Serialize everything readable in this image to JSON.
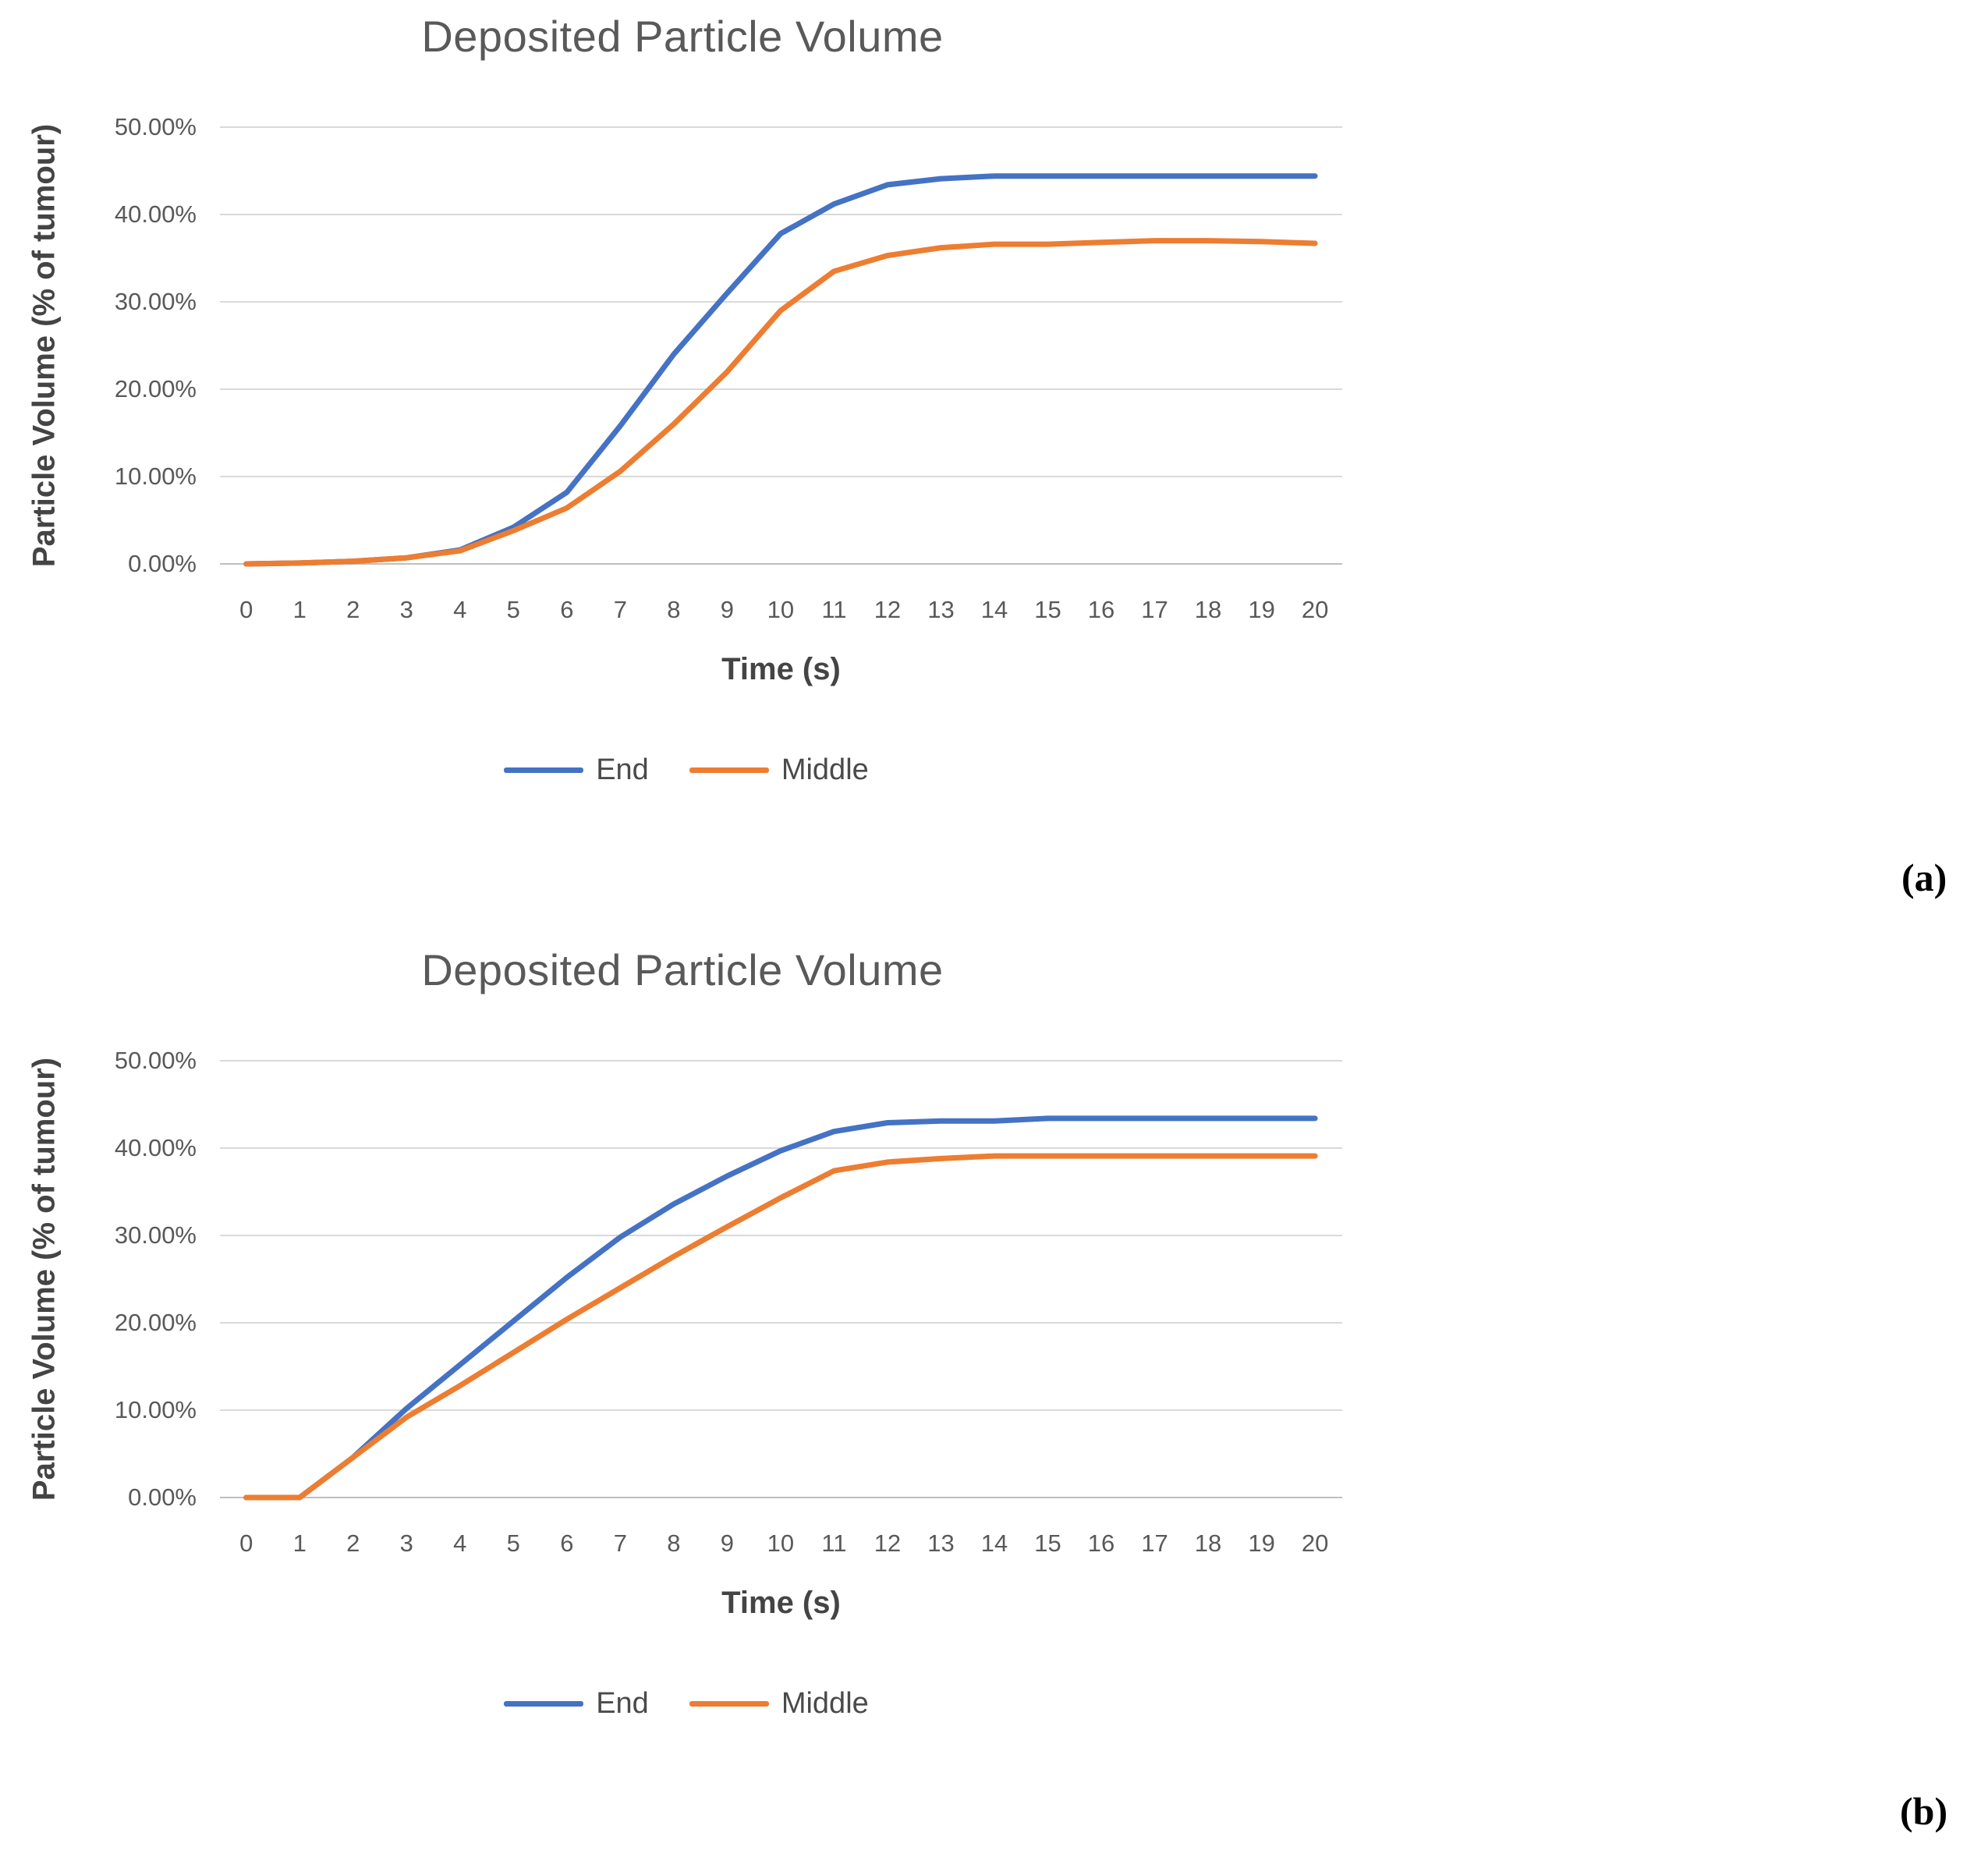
{
  "page": {
    "background": "#ffffff"
  },
  "panel_labels": {
    "a": "(a)",
    "b": "(b)"
  },
  "style": {
    "grid_color": "#D9D9D9",
    "axis_line_color": "#BFBFBF",
    "title_color": "#595959",
    "tick_color": "#595959",
    "series_blue": "#4472C4",
    "series_orange": "#ED7D31"
  },
  "chart_data": [
    {
      "type": "line",
      "title": "Deposited Particle Volume",
      "xlabel": "Time (s)",
      "ylabel": "Particle Volume (% of tumour)",
      "ylim": [
        0,
        50
      ],
      "grid": true,
      "legend_position": "bottom",
      "y_tick_labels": [
        "50.00%",
        "40.00%",
        "30.00%",
        "20.00%",
        "10.00%",
        "0.00%"
      ],
      "x_tick_labels": [
        "0",
        "1",
        "2",
        "3",
        "4",
        "5",
        "6",
        "7",
        "8",
        "9",
        "10",
        "11",
        "12",
        "13",
        "14",
        "15",
        "16",
        "17",
        "18",
        "19",
        "20"
      ],
      "x": [
        0,
        1,
        2,
        3,
        4,
        5,
        6,
        7,
        8,
        9,
        10,
        11,
        12,
        13,
        14,
        15,
        16,
        17,
        18,
        19,
        20
      ],
      "series": [
        {
          "name": "End",
          "color": "#4472C4",
          "values": [
            0,
            0.1,
            0.3,
            0.7,
            1.6,
            4.2,
            8.2,
            15.8,
            24.0,
            31.0,
            37.8,
            41.2,
            43.4,
            44.1,
            44.4,
            44.4,
            44.4,
            44.4,
            44.4,
            44.4,
            44.4
          ]
        },
        {
          "name": "Middle",
          "color": "#ED7D31",
          "values": [
            0,
            0.1,
            0.3,
            0.7,
            1.5,
            3.8,
            6.4,
            10.6,
            16.0,
            22.0,
            29.0,
            33.5,
            35.3,
            36.2,
            36.6,
            36.6,
            36.8,
            37.0,
            37.0,
            36.9,
            36.7
          ]
        }
      ]
    },
    {
      "type": "line",
      "title": "Deposited Particle Volume",
      "xlabel": "Time (s)",
      "ylabel": "Particle Volume (% of tumour)",
      "ylim": [
        0,
        50
      ],
      "grid": true,
      "legend_position": "bottom",
      "y_tick_labels": [
        "50.00%",
        "40.00%",
        "30.00%",
        "20.00%",
        "10.00%",
        "0.00%"
      ],
      "x_tick_labels": [
        "0",
        "1",
        "2",
        "3",
        "4",
        "5",
        "6",
        "7",
        "8",
        "9",
        "10",
        "11",
        "12",
        "13",
        "14",
        "15",
        "16",
        "17",
        "18",
        "19",
        "20"
      ],
      "x": [
        0,
        1,
        2,
        3,
        4,
        5,
        6,
        7,
        8,
        9,
        10,
        11,
        12,
        13,
        14,
        15,
        16,
        17,
        18,
        19,
        20
      ],
      "series": [
        {
          "name": "End",
          "color": "#4472C4",
          "values": [
            0,
            0,
            4.6,
            10.2,
            15.2,
            20.2,
            25.2,
            29.8,
            33.6,
            36.8,
            39.7,
            41.9,
            42.9,
            43.1,
            43.1,
            43.4,
            43.4,
            43.4,
            43.4,
            43.4,
            43.4
          ]
        },
        {
          "name": "Middle",
          "color": "#ED7D31",
          "values": [
            0,
            0,
            4.6,
            9.2,
            12.8,
            16.6,
            20.4,
            24.0,
            27.6,
            31.0,
            34.3,
            37.4,
            38.4,
            38.8,
            39.1,
            39.1,
            39.1,
            39.1,
            39.1,
            39.1,
            39.1
          ]
        }
      ]
    }
  ]
}
